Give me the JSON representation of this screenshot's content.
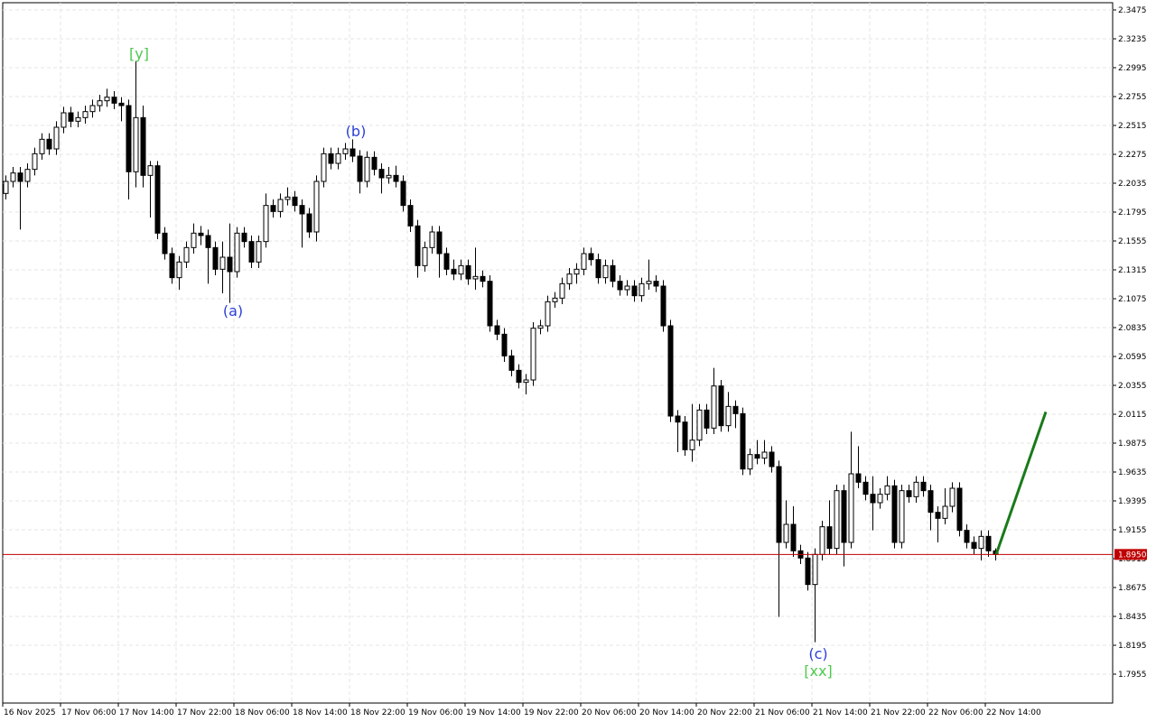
{
  "chart_data": {
    "type": "candlestick",
    "categories": [
      "16 Nov 2025",
      null,
      null,
      null,
      null,
      null,
      null,
      null,
      "17 Nov 06:00",
      null,
      null,
      null,
      null,
      null,
      null,
      null,
      "17 Nov 14:00",
      null,
      null,
      null,
      null,
      null,
      null,
      null,
      "17 Nov 22:00",
      null,
      null,
      null,
      null,
      null,
      null,
      null,
      "18 Nov 06:00",
      null,
      null,
      null,
      null,
      null,
      null,
      null,
      "18 Nov 14:00",
      null,
      null,
      null,
      null,
      null,
      null,
      null,
      "18 Nov 22:00",
      null,
      null,
      null,
      null,
      null,
      null,
      null,
      "19 Nov 06:00",
      null,
      null,
      null,
      null,
      null,
      null,
      null,
      "19 Nov 14:00",
      null,
      null,
      null,
      null,
      null,
      null,
      null,
      "19 Nov 22:00",
      null,
      null,
      null,
      null,
      null,
      null,
      null,
      "20 Nov 06:00",
      null,
      null,
      null,
      null,
      null,
      null,
      null,
      "20 Nov 14:00",
      null,
      null,
      null,
      null,
      null,
      null,
      null,
      "20 Nov 22:00",
      null,
      null,
      null,
      null,
      null,
      null,
      null,
      "21 Nov 06:00",
      null,
      null,
      null,
      null,
      null,
      null,
      null,
      "21 Nov 14:00",
      null,
      null,
      null,
      null,
      null,
      null,
      null,
      "21 Nov 22:00",
      null,
      null,
      null,
      null,
      null,
      null,
      null,
      "22 Nov 06:00",
      null,
      null,
      null,
      null,
      null,
      null,
      null,
      "22 Nov 14:00",
      null
    ],
    "ohlc": [
      [
        2.195,
        2.21,
        2.19,
        2.205
      ],
      [
        2.205,
        2.217,
        2.2,
        2.212
      ],
      [
        2.212,
        2.217,
        2.165,
        2.205
      ],
      [
        2.205,
        2.22,
        2.2,
        2.215
      ],
      [
        2.215,
        2.233,
        2.21,
        2.228
      ],
      [
        2.228,
        2.245,
        2.223,
        2.24
      ],
      [
        2.24,
        2.245,
        2.227,
        2.232
      ],
      [
        2.232,
        2.255,
        2.227,
        2.25
      ],
      [
        2.25,
        2.267,
        2.245,
        2.262
      ],
      [
        2.262,
        2.267,
        2.25,
        2.255
      ],
      [
        2.255,
        2.263,
        2.25,
        2.258
      ],
      [
        2.258,
        2.268,
        2.253,
        2.263
      ],
      [
        2.263,
        2.273,
        2.258,
        2.268
      ],
      [
        2.268,
        2.277,
        2.263,
        2.272
      ],
      [
        2.272,
        2.282,
        2.267,
        2.275
      ],
      [
        2.275,
        2.28,
        2.265,
        2.27
      ],
      [
        2.27,
        2.275,
        2.255,
        2.268
      ],
      [
        2.268,
        2.273,
        2.19,
        2.213
      ],
      [
        2.213,
        2.305,
        2.2,
        2.258
      ],
      [
        2.258,
        2.268,
        2.2,
        2.21
      ],
      [
        2.21,
        2.222,
        2.175,
        2.218
      ],
      [
        2.218,
        2.222,
        2.157,
        2.162
      ],
      [
        2.162,
        2.167,
        2.14,
        2.145
      ],
      [
        2.145,
        2.15,
        2.12,
        2.125
      ],
      [
        2.125,
        2.143,
        2.115,
        2.138
      ],
      [
        2.138,
        2.155,
        2.133,
        2.15
      ],
      [
        2.15,
        2.17,
        2.145,
        2.162
      ],
      [
        2.162,
        2.168,
        2.152,
        2.16
      ],
      [
        2.16,
        2.165,
        2.12,
        2.15
      ],
      [
        2.15,
        2.155,
        2.127,
        2.132
      ],
      [
        2.132,
        2.155,
        2.112,
        2.142
      ],
      [
        2.142,
        2.17,
        2.104,
        2.13
      ],
      [
        2.13,
        2.167,
        2.125,
        2.162
      ],
      [
        2.162,
        2.167,
        2.15,
        2.155
      ],
      [
        2.155,
        2.16,
        2.133,
        2.138
      ],
      [
        2.138,
        2.16,
        2.133,
        2.155
      ],
      [
        2.155,
        2.195,
        2.15,
        2.185
      ],
      [
        2.185,
        2.19,
        2.175,
        2.18
      ],
      [
        2.18,
        2.195,
        2.175,
        2.19
      ],
      [
        2.19,
        2.2,
        2.185,
        2.192
      ],
      [
        2.192,
        2.197,
        2.18,
        2.185
      ],
      [
        2.185,
        2.19,
        2.15,
        2.178
      ],
      [
        2.178,
        2.183,
        2.158,
        2.163
      ],
      [
        2.163,
        2.21,
        2.155,
        2.205
      ],
      [
        2.205,
        2.233,
        2.2,
        2.228
      ],
      [
        2.228,
        2.233,
        2.215,
        2.22
      ],
      [
        2.22,
        2.233,
        2.215,
        2.228
      ],
      [
        2.228,
        2.237,
        2.223,
        2.232
      ],
      [
        2.232,
        2.24,
        2.221,
        2.226
      ],
      [
        2.226,
        2.231,
        2.195,
        2.205
      ],
      [
        2.205,
        2.23,
        2.2,
        2.225
      ],
      [
        2.225,
        2.23,
        2.21,
        2.215
      ],
      [
        2.215,
        2.22,
        2.195,
        2.208
      ],
      [
        2.208,
        2.217,
        2.203,
        2.21
      ],
      [
        2.21,
        2.218,
        2.2,
        2.205
      ],
      [
        2.205,
        2.21,
        2.18,
        2.185
      ],
      [
        2.185,
        2.19,
        2.163,
        2.168
      ],
      [
        2.168,
        2.173,
        2.125,
        2.135
      ],
      [
        2.135,
        2.155,
        2.13,
        2.15
      ],
      [
        2.15,
        2.168,
        2.145,
        2.163
      ],
      [
        2.163,
        2.168,
        2.125,
        2.145
      ],
      [
        2.145,
        2.15,
        2.127,
        2.132
      ],
      [
        2.132,
        2.14,
        2.123,
        2.128
      ],
      [
        2.128,
        2.14,
        2.123,
        2.135
      ],
      [
        2.135,
        2.14,
        2.119,
        2.124
      ],
      [
        2.124,
        2.15,
        2.115,
        2.126
      ],
      [
        2.126,
        2.131,
        2.117,
        2.122
      ],
      [
        2.122,
        2.127,
        2.08,
        2.085
      ],
      [
        2.085,
        2.09,
        2.073,
        2.078
      ],
      [
        2.078,
        2.083,
        2.055,
        2.06
      ],
      [
        2.06,
        2.065,
        2.043,
        2.048
      ],
      [
        2.048,
        2.053,
        2.033,
        2.038
      ],
      [
        2.038,
        2.045,
        2.028,
        2.04
      ],
      [
        2.04,
        2.088,
        2.035,
        2.083
      ],
      [
        2.083,
        2.09,
        2.078,
        2.085
      ],
      [
        2.085,
        2.11,
        2.08,
        2.105
      ],
      [
        2.105,
        2.113,
        2.1,
        2.108
      ],
      [
        2.108,
        2.125,
        2.103,
        2.12
      ],
      [
        2.12,
        2.133,
        2.115,
        2.128
      ],
      [
        2.128,
        2.137,
        2.12,
        2.132
      ],
      [
        2.132,
        2.15,
        2.127,
        2.145
      ],
      [
        2.145,
        2.15,
        2.135,
        2.14
      ],
      [
        2.14,
        2.145,
        2.12,
        2.125
      ],
      [
        2.125,
        2.14,
        2.12,
        2.135
      ],
      [
        2.135,
        2.14,
        2.117,
        2.122
      ],
      [
        2.122,
        2.127,
        2.11,
        2.115
      ],
      [
        2.115,
        2.123,
        2.11,
        2.118
      ],
      [
        2.118,
        2.123,
        2.105,
        2.11
      ],
      [
        2.11,
        2.125,
        2.105,
        2.12
      ],
      [
        2.12,
        2.14,
        2.115,
        2.122
      ],
      [
        2.122,
        2.127,
        2.113,
        2.118
      ],
      [
        2.118,
        2.123,
        2.08,
        2.085
      ],
      [
        2.085,
        2.09,
        2.005,
        2.01
      ],
      [
        2.01,
        2.015,
        1.98,
        2.005
      ],
      [
        2.005,
        2.01,
        1.977,
        1.982
      ],
      [
        1.982,
        2.02,
        1.972,
        1.99
      ],
      [
        1.99,
        2.02,
        1.985,
        2.015
      ],
      [
        2.015,
        2.02,
        1.995,
        2.0
      ],
      [
        2.0,
        2.05,
        1.995,
        2.035
      ],
      [
        2.035,
        2.04,
        1.997,
        2.002
      ],
      [
        2.002,
        2.03,
        1.997,
        2.018
      ],
      [
        2.018,
        2.023,
        2.0,
        2.012
      ],
      [
        2.012,
        2.017,
        1.961,
        1.966
      ],
      [
        1.966,
        1.983,
        1.961,
        1.978
      ],
      [
        1.978,
        1.99,
        1.97,
        1.975
      ],
      [
        1.975,
        1.99,
        1.97,
        1.98
      ],
      [
        1.98,
        1.985,
        1.963,
        1.968
      ],
      [
        1.968,
        1.973,
        1.843,
        1.905
      ],
      [
        1.905,
        1.94,
        1.9,
        1.92
      ],
      [
        1.92,
        1.935,
        1.893,
        1.898
      ],
      [
        1.898,
        1.903,
        1.887,
        1.892
      ],
      [
        1.892,
        1.897,
        1.865,
        1.87
      ],
      [
        1.87,
        1.9,
        1.822,
        1.895
      ],
      [
        1.895,
        1.923,
        1.89,
        1.918
      ],
      [
        1.918,
        1.94,
        1.895,
        1.9
      ],
      [
        1.9,
        1.953,
        1.895,
        1.948
      ],
      [
        1.948,
        1.953,
        1.885,
        1.905
      ],
      [
        1.905,
        1.997,
        1.9,
        1.962
      ],
      [
        1.962,
        1.985,
        1.95,
        1.955
      ],
      [
        1.955,
        1.96,
        1.94,
        1.945
      ],
      [
        1.945,
        1.96,
        1.915,
        1.938
      ],
      [
        1.938,
        1.95,
        1.933,
        1.945
      ],
      [
        1.945,
        1.96,
        1.94,
        1.952
      ],
      [
        1.952,
        1.957,
        1.9,
        1.905
      ],
      [
        1.905,
        1.953,
        1.9,
        1.948
      ],
      [
        1.948,
        1.953,
        1.938,
        1.943
      ],
      [
        1.943,
        1.96,
        1.938,
        1.955
      ],
      [
        1.955,
        1.96,
        1.943,
        1.948
      ],
      [
        1.948,
        1.953,
        1.915,
        1.93
      ],
      [
        1.93,
        1.935,
        1.905,
        1.925
      ],
      [
        1.925,
        1.95,
        1.92,
        1.935
      ],
      [
        1.935,
        1.955,
        1.93,
        1.95
      ],
      [
        1.95,
        1.955,
        1.91,
        1.915
      ],
      [
        1.915,
        1.92,
        1.9,
        1.905
      ],
      [
        1.905,
        1.91,
        1.895,
        1.9
      ],
      [
        1.9,
        1.915,
        1.89,
        1.91
      ],
      [
        1.91,
        1.915,
        1.893,
        1.898
      ],
      [
        1.898,
        1.9,
        1.89,
        1.895
      ]
    ],
    "ylim": [
      1.7715,
      2.3535
    ],
    "yticks": [
      2.3475,
      2.3235,
      2.2995,
      2.2755,
      2.2515,
      2.2275,
      2.2035,
      2.1795,
      2.1555,
      2.1315,
      2.1075,
      2.0835,
      2.0595,
      2.0355,
      2.0115,
      1.9875,
      1.9635,
      1.9395,
      1.9155,
      1.8915,
      1.8675,
      1.8435,
      1.8195,
      1.7955
    ],
    "grid": true,
    "current_price": {
      "value": 1.895,
      "label": "1.8950",
      "color": "#c00000"
    },
    "forecast": {
      "color": "#1a7a1a",
      "values": [
        1.895,
        2.0135
      ]
    },
    "annotations": [
      {
        "text": "[y]",
        "color": "#4ec94e"
      },
      {
        "text": "(a)",
        "color": "#2b3fd6"
      },
      {
        "text": "(b)",
        "color": "#2b3fd6"
      },
      {
        "text": "(c)",
        "color": "#2b3fd6"
      },
      {
        "text": "[xx]",
        "color": "#4ec94e"
      }
    ]
  }
}
